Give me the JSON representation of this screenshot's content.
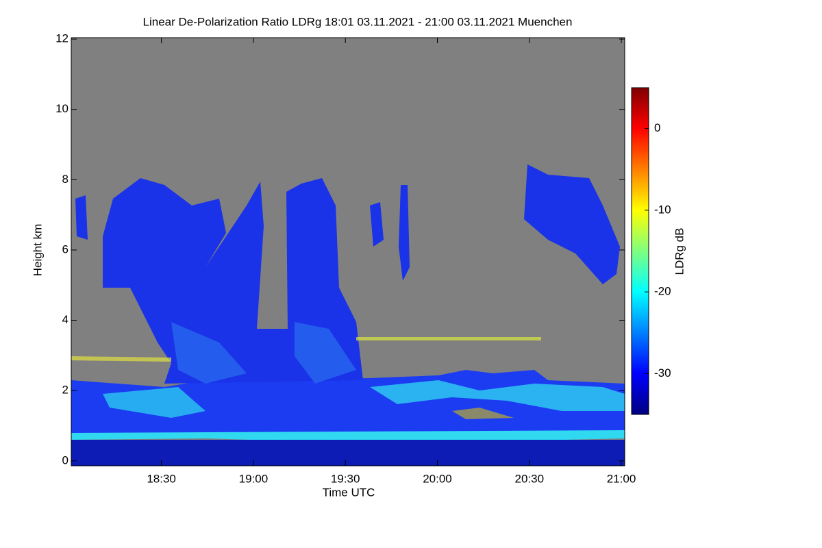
{
  "chart_data": {
    "type": "heatmap",
    "title": "Linear De-Polarization Ratio LDRg   18:01 03.11.2021 - 21:00 03.11.2021 Muenchen",
    "x_label": "Time UTC",
    "y_label": "Height km",
    "colorbar_label": "LDRg dB",
    "xlim": [
      1080.6,
      1261.1
    ],
    "xticks": [
      {
        "value": 1110,
        "label": "18:30"
      },
      {
        "value": 1140,
        "label": "19:00"
      },
      {
        "value": 1170,
        "label": "19:30"
      },
      {
        "value": 1200,
        "label": "20:00"
      },
      {
        "value": 1230,
        "label": "20:30"
      },
      {
        "value": 1260,
        "label": "21:00"
      }
    ],
    "ylim": [
      -0.14,
      12.04
    ],
    "yticks": [
      0,
      2,
      4,
      6,
      8,
      10,
      12
    ],
    "clim": [
      -35,
      5
    ],
    "cticks": [
      0,
      -10,
      -20,
      -30
    ],
    "colormap": "jet"
  }
}
